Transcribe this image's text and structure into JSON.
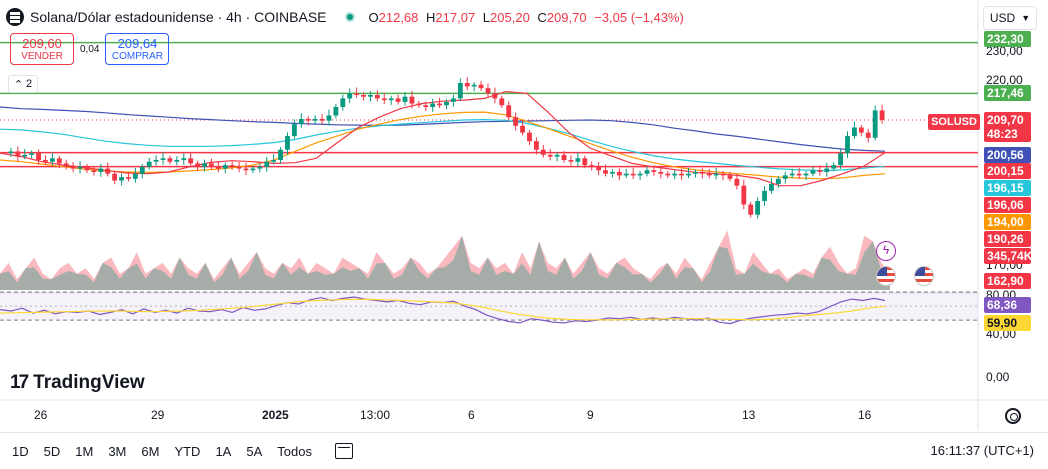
{
  "header": {
    "title": "Solana/Dólar estadounidense · 4h · COINBASE",
    "ohlc": [
      {
        "k": "O",
        "v": "212,68"
      },
      {
        "k": "H",
        "v": "217,07"
      },
      {
        "k": "L",
        "v": "205,20"
      },
      {
        "k": "C",
        "v": "209,70"
      }
    ],
    "change": "−3,05 (−1,43%)"
  },
  "trade": {
    "sell_price": "209,60",
    "sell_label": "VENDER",
    "spread": "0,04",
    "buy_price": "209,64",
    "buy_label": "COMPRAR"
  },
  "indicator_toggle": "2",
  "currency": "USD",
  "symbol_tag": "SOLUSD",
  "last_price": "209,70",
  "countdown": "48:23",
  "price_axis": {
    "ticks": [
      "230,00",
      "220,00",
      "170,00",
      "80,00",
      "40,00",
      "0,00"
    ],
    "tags": [
      {
        "text": "232,30",
        "color": "#4caf50",
        "y": 232.3
      },
      {
        "text": "217,46",
        "color": "#4caf50",
        "y": 217.46
      },
      {
        "text": "200,56",
        "color": "#3f51b5",
        "y": 200.56
      },
      {
        "text": "200,15",
        "color": "#f23645",
        "y": 200.15
      },
      {
        "text": "196,15",
        "color": "#26c6da",
        "y": 196.15
      },
      {
        "text": "196,06",
        "color": "#f23645",
        "y": 196.06
      },
      {
        "text": "194,00",
        "color": "#ff9800",
        "y": 194.0
      },
      {
        "text": "190,26",
        "color": "#f23645",
        "y": 190.26
      },
      {
        "text": "345,74K",
        "color": "#f23645",
        "y": 0
      },
      {
        "text": "162,90",
        "color": "#f23645",
        "y": 162.9
      }
    ],
    "rsi_tags": [
      {
        "text": "68,36",
        "color": "#7e57c2"
      },
      {
        "text": "59,90",
        "color": "#fdd835"
      }
    ]
  },
  "time_axis": {
    "labels": [
      {
        "text": "26",
        "bold": false
      },
      {
        "text": "29",
        "bold": false
      },
      {
        "text": "2025",
        "bold": true
      },
      {
        "text": "13:00",
        "bold": false
      },
      {
        "text": "6",
        "bold": false
      },
      {
        "text": "9",
        "bold": false
      },
      {
        "text": "13",
        "bold": false
      },
      {
        "text": "16",
        "bold": false
      }
    ]
  },
  "brand": "TradingView",
  "ranges": [
    "1D",
    "5D",
    "1M",
    "3M",
    "6M",
    "YTD",
    "1A",
    "5A",
    "Todos"
  ],
  "clock": "16:11:37 (UTC+1)",
  "colors": {
    "up": "#089981",
    "down": "#f23645",
    "ma_long": "#3f51b5",
    "ma_mid": "#26c6da",
    "ma_short": "#ff9800",
    "ma_fast": "#f23645",
    "rsi": "#7e57c2",
    "rsi_ma": "#fdd835",
    "hline_green": "#4caf50",
    "hline_red": "#f23645"
  },
  "chart_data": {
    "type": "candlestick",
    "price_range": [
      160,
      235
    ],
    "horizontal_lines": [
      {
        "value": 232.3,
        "color": "#4caf50"
      },
      {
        "value": 217.46,
        "color": "#4caf50"
      },
      {
        "value": 200.15,
        "color": "#f23645"
      },
      {
        "value": 196.06,
        "color": "#f23645"
      }
    ],
    "close_path": [
      200,
      200.5,
      199,
      199.5,
      200,
      198,
      197.5,
      198.5,
      197,
      196,
      195.5,
      196,
      195,
      194.5,
      195.5,
      194,
      192,
      193,
      192.5,
      194,
      196,
      197.5,
      198,
      198.5,
      197.5,
      198,
      198.5,
      197,
      196,
      197,
      196,
      195.5,
      196.5,
      196,
      195.5,
      195,
      195.5,
      196,
      197.5,
      198,
      201,
      205,
      208.5,
      210,
      209.5,
      210,
      209.5,
      211,
      213.5,
      216,
      217.5,
      217,
      216.5,
      217,
      216,
      215.5,
      216,
      215,
      216.5,
      214.5,
      214,
      213.5,
      214.5,
      214,
      215,
      216,
      220.5,
      219.5,
      220,
      219,
      217.5,
      216,
      214,
      210.5,
      208,
      206,
      203.5,
      201,
      199.5,
      199,
      199.5,
      198,
      197.5,
      198.5,
      196.5,
      196,
      195,
      194,
      194.5,
      193.5,
      194,
      193.5,
      194,
      195,
      194.5,
      194,
      193.5,
      194,
      193.5,
      194,
      194.5,
      194,
      193.5,
      194,
      193.5,
      192.5,
      190.5,
      185,
      182,
      186,
      189,
      191,
      192.5,
      193.5,
      194,
      193.5,
      194,
      195,
      194.5,
      195.5,
      196.5,
      200,
      205,
      207.5,
      206,
      204.5,
      212.5,
      209.7
    ],
    "ma_long": [
      213.5,
      213,
      212.8,
      212.5,
      212.2,
      211.8,
      211.3,
      210.9,
      210.5,
      210.1,
      209.8,
      209.5,
      209.2,
      209,
      208.7,
      208.5,
      208.3,
      208.2,
      208.1,
      208.2,
      208.4,
      208.7,
      209,
      209.2,
      209.3,
      209.4,
      209.5,
      209.6,
      209.7,
      209.5,
      209,
      208.3,
      207.3,
      206.5,
      205.6,
      204.9,
      204.1,
      203.3,
      202.5,
      201.8,
      201.2,
      200.8,
      200.56
    ],
    "ma_mid": [
      207,
      206.8,
      206.2,
      205.5,
      204.5,
      203.5,
      202.8,
      202.3,
      202,
      202,
      202,
      202.2,
      202.6,
      203.1,
      204,
      205.3,
      206.4,
      207.3,
      208,
      208.5,
      208.9,
      209.3,
      209.7,
      209.8,
      209.6,
      208.7,
      207.3,
      205.7,
      203.8,
      202,
      200.5,
      199.3,
      198.3,
      197.6,
      197,
      196.4,
      195.9,
      195.4,
      195.1,
      194.9,
      195.1,
      195.6,
      196.15
    ],
    "ma_short": [
      198,
      197.5,
      196.8,
      196,
      195.3,
      194.8,
      194.5,
      194.4,
      194.5,
      194.8,
      195.2,
      195.7,
      196.5,
      198,
      200.5,
      203,
      205,
      207,
      208.5,
      209.8,
      210.8,
      211.5,
      211.9,
      212,
      211.2,
      209.3,
      207.2,
      205,
      202.8,
      200.7,
      198.8,
      197.2,
      196,
      195.1,
      194.5,
      194,
      193.5,
      193,
      192.7,
      192.5,
      192.8,
      193.5,
      194
    ],
    "ma_fast": [
      200,
      199,
      197.5,
      196.5,
      195.8,
      195,
      194.2,
      194,
      194.5,
      196,
      197.3,
      197.8,
      197.5,
      197,
      197.2,
      198.5,
      203,
      207.5,
      210.5,
      213,
      214.5,
      215.2,
      215.5,
      216,
      218,
      217.5,
      212,
      206,
      201.5,
      199.2,
      197,
      196,
      195.2,
      194.4,
      194,
      193.5,
      192.6,
      190.5,
      190.5,
      192,
      194,
      196.2,
      200.15
    ],
    "rsi": [
      55,
      53,
      57,
      50,
      54,
      49,
      52,
      51,
      53,
      48,
      51,
      55,
      49,
      56,
      51,
      54,
      50,
      57,
      53,
      52,
      55,
      51,
      58,
      54,
      56,
      61,
      65,
      63,
      69,
      72,
      68,
      71,
      73,
      70,
      68,
      66,
      68,
      64,
      62,
      66,
      65,
      67,
      60,
      55,
      47,
      42,
      38,
      36,
      42,
      40,
      37,
      36,
      39,
      38,
      40,
      43,
      42,
      44,
      41,
      43,
      41,
      44,
      42,
      40,
      43,
      37,
      35,
      40,
      43,
      45,
      47,
      48,
      50,
      49,
      52,
      59,
      66,
      70,
      68,
      71,
      68
    ],
    "rsi_ma": [
      50,
      50.5,
      51,
      51.5,
      52,
      52.5,
      53,
      53,
      52.5,
      52,
      52.5,
      53,
      54,
      55.5,
      57,
      59,
      61.5,
      64,
      66.5,
      68,
      69,
      69.5,
      69.5,
      69,
      68,
      67,
      66,
      64.5,
      62,
      58,
      53,
      48.5,
      45,
      42.5,
      41,
      40.5,
      40.5,
      40.5,
      41,
      41.5,
      42,
      42,
      42,
      41.5,
      41,
      40.5,
      41,
      43,
      46,
      48,
      50,
      53,
      57,
      59.9
    ],
    "rsi_levels": [
      80,
      40
    ],
    "volume": [
      3,
      5,
      2,
      4,
      6,
      3,
      2,
      4,
      5,
      3,
      4,
      2,
      5,
      6,
      3,
      4,
      7,
      3,
      4,
      5,
      3,
      6,
      4,
      3,
      5,
      2,
      4,
      6,
      3,
      5,
      7,
      4,
      3,
      5,
      4,
      6,
      3,
      5,
      4,
      3,
      6,
      5,
      4,
      3,
      7,
      5,
      3,
      4,
      6,
      5,
      3,
      4,
      6,
      8,
      10,
      5,
      4,
      6,
      4,
      5,
      3,
      7,
      4,
      9,
      5,
      4,
      6,
      3,
      5,
      7,
      4,
      3,
      5,
      6,
      4,
      3,
      2,
      4,
      5,
      3,
      6,
      4,
      2,
      5,
      8,
      11,
      4,
      3,
      7,
      5,
      3,
      4,
      2,
      3,
      4,
      3,
      6,
      8,
      5,
      3,
      4,
      10,
      9,
      5,
      3
    ]
  }
}
